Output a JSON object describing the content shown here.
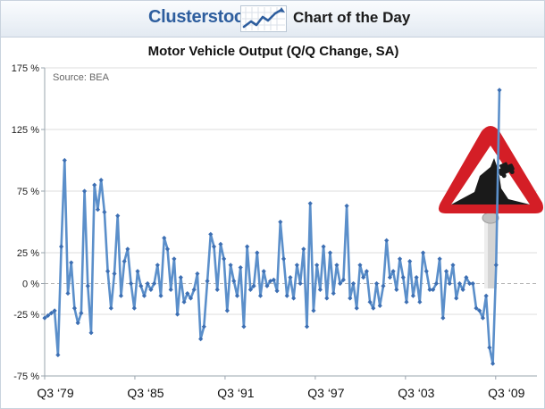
{
  "header": {
    "brand": "Clusterstock",
    "subtitle": "Chart of the Day"
  },
  "chart_data": {
    "type": "line",
    "title": "Motor Vehicle Output (Q/Q Change, SA)",
    "source": "Source: BEA",
    "xlabel": "",
    "ylabel": "",
    "ylim": [
      -75,
      175
    ],
    "xlim": [
      1979.5,
      2009.75
    ],
    "y_ticks": [
      {
        "value": 175,
        "label": "175 %"
      },
      {
        "value": 125,
        "label": "125 %"
      },
      {
        "value": 75,
        "label": "75 %"
      },
      {
        "value": 25,
        "label": "25 %"
      },
      {
        "value": 0,
        "label": "0 %"
      },
      {
        "value": -25,
        "label": "-25 %"
      },
      {
        "value": -75,
        "label": "-75 %"
      }
    ],
    "x_ticks": [
      {
        "value": 1979.5,
        "label": "Q3 ‘79"
      },
      {
        "value": 1985.5,
        "label": "Q3 ‘85"
      },
      {
        "value": 1991.5,
        "label": "Q3 ‘91"
      },
      {
        "value": 1997.5,
        "label": "Q3 ‘97"
      },
      {
        "value": 2003.5,
        "label": "Q3 ‘03"
      },
      {
        "value": 2009.5,
        "label": "Q3 ‘09"
      }
    ],
    "grid": "horizontal",
    "line_color": "#5b8fca",
    "marker_color": "#3d6fb3",
    "series": [
      {
        "name": "",
        "values": [
          -28,
          -26,
          -24,
          -22,
          -58,
          30,
          100,
          -8,
          17,
          -20,
          -32,
          -24,
          75,
          -2,
          -40,
          80,
          60,
          84,
          58,
          10,
          -20,
          8,
          55,
          -10,
          18,
          28,
          0,
          -20,
          10,
          -2,
          -10,
          0,
          -5,
          0,
          15,
          -10,
          37,
          28,
          -5,
          20,
          -25,
          5,
          -15,
          -8,
          -12,
          -5,
          8,
          -45,
          -35,
          2,
          40,
          30,
          -5,
          32,
          20,
          -22,
          15,
          2,
          -10,
          13,
          -35,
          30,
          -5,
          -2,
          25,
          -10,
          10,
          -2,
          2,
          3,
          -6,
          50,
          20,
          -10,
          5,
          -12,
          15,
          0,
          28,
          -35,
          65,
          -22,
          15,
          -5,
          30,
          -12,
          25,
          -8,
          15,
          0,
          3,
          63,
          -12,
          0,
          -20,
          15,
          5,
          10,
          -15,
          -20,
          0,
          -18,
          -2,
          35,
          5,
          10,
          -5,
          20,
          5,
          -15,
          18,
          -10,
          5,
          -15,
          25,
          10,
          -5,
          -5,
          0,
          20,
          -28,
          10,
          0,
          15,
          -12,
          0,
          -5,
          5,
          0,
          0,
          -20,
          -22,
          -28,
          -10,
          -52,
          -65,
          15,
          157
        ]
      }
    ]
  }
}
